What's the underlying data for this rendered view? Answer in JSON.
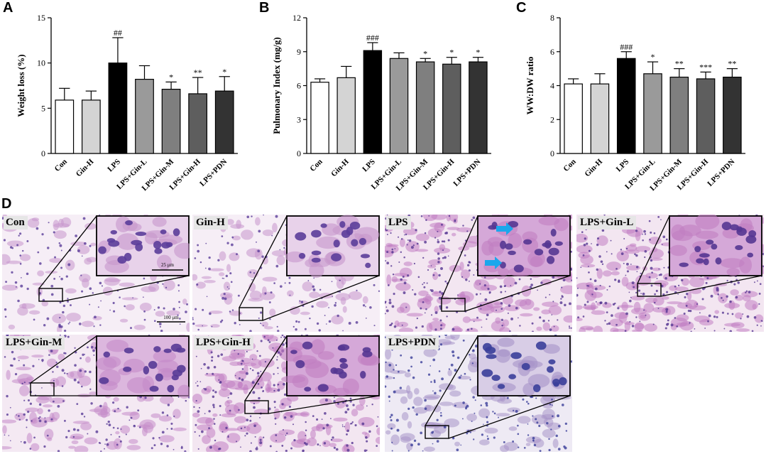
{
  "panels": {
    "a": "A",
    "b": "B",
    "c": "C",
    "d": "D"
  },
  "chart_data": [
    {
      "type": "bar",
      "title": "",
      "xlabel": "",
      "ylabel": "Weight loss (%)",
      "ylim": [
        0,
        15
      ],
      "yticks": [
        0,
        5,
        10,
        15
      ],
      "categories": [
        "Con",
        "Gin-H",
        "LPS",
        "LPS+Gin-L",
        "LPS+Gin-M",
        "LPS+Gin-H",
        "LPS+PDN"
      ],
      "values": [
        5.9,
        5.9,
        10.0,
        8.2,
        7.1,
        6.6,
        6.9
      ],
      "errors": [
        1.3,
        1.0,
        2.8,
        1.5,
        0.8,
        1.8,
        1.6
      ],
      "annotations": [
        "",
        "",
        "##",
        "",
        "*",
        "**",
        "*"
      ]
    },
    {
      "type": "bar",
      "title": "",
      "xlabel": "",
      "ylabel": "Pulmonary Index (mg/g)",
      "ylim": [
        0,
        12
      ],
      "yticks": [
        0,
        3,
        6,
        9,
        12
      ],
      "categories": [
        "Con",
        "Gin-H",
        "LPS",
        "LPS+Gin-L",
        "LPS+Gin-M",
        "LPS+Gin-H",
        "LPS+PDN"
      ],
      "values": [
        6.3,
        6.7,
        9.1,
        8.4,
        8.1,
        7.9,
        8.1
      ],
      "errors": [
        0.3,
        1.0,
        0.7,
        0.5,
        0.3,
        0.6,
        0.4
      ],
      "annotations": [
        "",
        "",
        "###",
        "",
        "*",
        "*",
        "*"
      ]
    },
    {
      "type": "bar",
      "title": "",
      "xlabel": "",
      "ylabel": "WW:DW ratio",
      "ylim": [
        0,
        8
      ],
      "yticks": [
        0,
        2,
        4,
        6,
        8
      ],
      "categories": [
        "Con",
        "Gin-H",
        "LPS",
        "LPS+Gin-L",
        "LPS+Gin-M",
        "LPS+Gin-H",
        "LPS+PDN"
      ],
      "values": [
        4.1,
        4.1,
        5.6,
        4.7,
        4.5,
        4.4,
        4.5
      ],
      "errors": [
        0.3,
        0.6,
        0.4,
        0.7,
        0.5,
        0.4,
        0.5
      ],
      "annotations": [
        "",
        "",
        "###",
        "*",
        "**",
        "***",
        "**"
      ]
    }
  ],
  "bar_colors": [
    "#ffffff",
    "#d4d4d4",
    "#000000",
    "#9a9a9a",
    "#7f7f7f",
    "#5e5e5e",
    "#333333"
  ],
  "histology": {
    "tiles": [
      {
        "label": "Con",
        "stain": "light"
      },
      {
        "label": "Gin-H",
        "stain": "light"
      },
      {
        "label": "LPS",
        "stain": "dense"
      },
      {
        "label": "LPS+Gin-L",
        "stain": "dense"
      },
      {
        "label": "LPS+Gin-M",
        "stain": "medium"
      },
      {
        "label": "LPS+Gin-H",
        "stain": "dense"
      },
      {
        "label": "LPS+PDN",
        "stain": "blue"
      }
    ],
    "scalebar_large": "100 μm",
    "scalebar_small": "25 μm",
    "arrow_color": "#1aa7ec"
  }
}
